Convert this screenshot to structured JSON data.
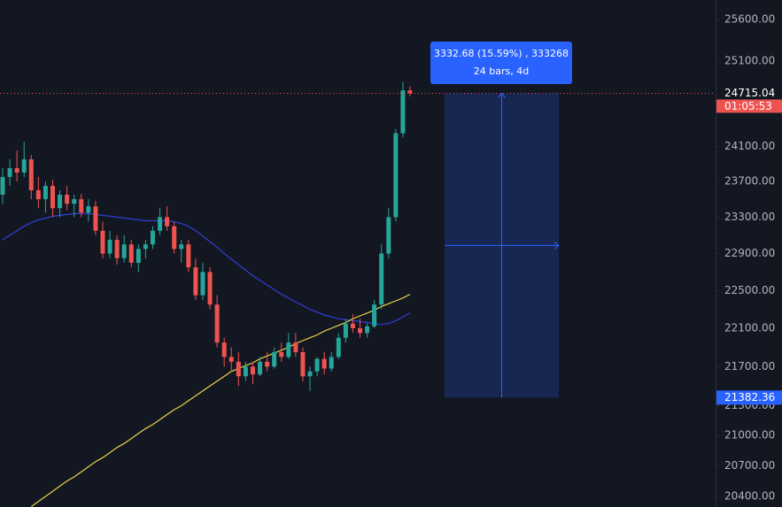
{
  "chart_data": {
    "type": "candlestick",
    "log_scale": true,
    "ylim": [
      20297,
      25838
    ],
    "yticks": [
      {
        "value": 25600,
        "label": "25600.00"
      },
      {
        "value": 25100,
        "label": "25100.00"
      },
      {
        "value": 24100,
        "label": "24100.00"
      },
      {
        "value": 23700,
        "label": "23700.00"
      },
      {
        "value": 23300,
        "label": "23300.00"
      },
      {
        "value": 22900,
        "label": "22900.00"
      },
      {
        "value": 22500,
        "label": "22500.00"
      },
      {
        "value": 22100,
        "label": "22100.00"
      },
      {
        "value": 21700,
        "label": "21700.00"
      },
      {
        "value": 21300,
        "label": "21300.00"
      },
      {
        "value": 21000,
        "label": "21000.00"
      },
      {
        "value": 20700,
        "label": "20700.00"
      },
      {
        "value": 20400,
        "label": "20400.00"
      }
    ],
    "up_color": "#26a69a",
    "down_color": "#ef5350",
    "open": [
      23550,
      23750,
      23850,
      23800,
      23950,
      23600,
      23500,
      23650,
      23400,
      23550,
      23450,
      23500,
      23350,
      23420,
      23150,
      22900,
      23050,
      22850,
      23000,
      22800,
      22950,
      23000,
      23150,
      23300,
      23200,
      22950,
      23000,
      22750,
      22450,
      22700,
      22350,
      21950,
      21800,
      21750,
      21600,
      21700,
      21620,
      21750,
      21700,
      21850,
      21800,
      21950,
      21850,
      21600,
      21650,
      21780,
      21680,
      21800,
      22000,
      22150,
      22100,
      22050,
      22120,
      22350,
      22900,
      23300,
      24250,
      24750
    ],
    "high": [
      23850,
      23950,
      24050,
      24150,
      24000,
      23750,
      23700,
      23720,
      23600,
      23650,
      23550,
      23560,
      23500,
      23480,
      23250,
      23150,
      23100,
      23100,
      23050,
      23000,
      23050,
      23200,
      23400,
      23420,
      23250,
      23050,
      23050,
      22850,
      22800,
      22750,
      22450,
      22000,
      21900,
      21850,
      21750,
      21750,
      21800,
      21850,
      21900,
      21950,
      22050,
      22050,
      21900,
      21700,
      21800,
      21850,
      21850,
      22050,
      22200,
      22250,
      22200,
      22150,
      22400,
      23000,
      23400,
      24300,
      24850,
      24800
    ],
    "low": [
      23450,
      23650,
      23700,
      23750,
      23500,
      23400,
      23350,
      23300,
      23300,
      23380,
      23300,
      23300,
      23250,
      23100,
      22850,
      22850,
      22780,
      22800,
      22750,
      22700,
      22850,
      22950,
      23100,
      23150,
      22900,
      22800,
      22700,
      22400,
      22400,
      22300,
      21900,
      21700,
      21650,
      21500,
      21550,
      21520,
      21600,
      21650,
      21680,
      21750,
      21780,
      21800,
      21550,
      21450,
      21600,
      21620,
      21650,
      21780,
      21950,
      22050,
      22000,
      22000,
      22100,
      22300,
      22850,
      23250,
      24200,
      24680
    ],
    "close": [
      23750,
      23850,
      23800,
      23950,
      23600,
      23500,
      23650,
      23400,
      23550,
      23450,
      23500,
      23350,
      23420,
      23150,
      22900,
      23050,
      22850,
      23000,
      22800,
      22950,
      23000,
      23150,
      23300,
      23200,
      22950,
      23000,
      22750,
      22450,
      22700,
      22350,
      21950,
      21800,
      21750,
      21600,
      21700,
      21620,
      21750,
      21700,
      21850,
      21800,
      21950,
      21850,
      21600,
      21650,
      21780,
      21680,
      21800,
      22000,
      22150,
      22100,
      22050,
      22120,
      22350,
      22900,
      23300,
      24250,
      24750,
      24715.04
    ],
    "series": [
      {
        "color": "#2f3fd6",
        "values": [
          23050,
          23100,
          23150,
          23200,
          23240,
          23270,
          23290,
          23310,
          23320,
          23330,
          23340,
          23340,
          23340,
          23330,
          23320,
          23310,
          23300,
          23290,
          23280,
          23270,
          23260,
          23260,
          23260,
          23260,
          23250,
          23230,
          23200,
          23150,
          23090,
          23030,
          22970,
          22900,
          22840,
          22780,
          22720,
          22660,
          22610,
          22560,
          22510,
          22460,
          22420,
          22380,
          22340,
          22300,
          22270,
          22240,
          22220,
          22200,
          22190,
          22180,
          22170,
          22160,
          22150,
          22140,
          22150,
          22180,
          22220,
          22260
        ]
      },
      {
        "color": "#e8d44a",
        "values": [
          null,
          null,
          null,
          null,
          20300,
          20350,
          20400,
          20450,
          20500,
          20550,
          20590,
          20640,
          20690,
          20740,
          20780,
          20830,
          20880,
          20920,
          20970,
          21020,
          21070,
          21110,
          21160,
          21210,
          21260,
          21300,
          21350,
          21400,
          21450,
          21500,
          21550,
          21600,
          21650,
          21680,
          21710,
          21740,
          21780,
          21810,
          21840,
          21870,
          21900,
          21940,
          21970,
          22000,
          22030,
          22070,
          22100,
          22130,
          22160,
          22200,
          22230,
          22260,
          22290,
          22330,
          22360,
          22390,
          22420,
          22460
        ]
      }
    ],
    "last_price": 24715.04,
    "last_price_color": "#ef5350",
    "countdown": "01:05:53",
    "measure": {
      "high": 24715.04,
      "low": 21382.36,
      "color": "#2962ff",
      "change_label": "3332.68 (15.59%) , 333268",
      "bars_label": "24 bars, 4d"
    }
  }
}
